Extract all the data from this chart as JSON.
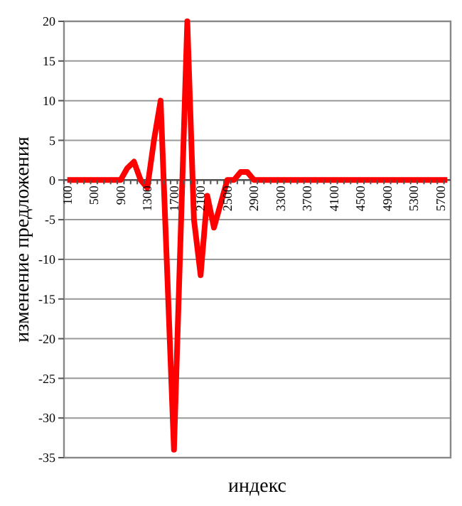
{
  "chart_data": {
    "type": "line",
    "xlabel": "индекс",
    "ylabel": "изменение предложения",
    "categories": [
      "100",
      null,
      null,
      null,
      "500",
      null,
      null,
      null,
      "900",
      null,
      null,
      null,
      "1300",
      null,
      null,
      null,
      "1700",
      null,
      null,
      null,
      "2100",
      null,
      null,
      null,
      "2500",
      null,
      null,
      null,
      "2900",
      null,
      null,
      null,
      "3300",
      null,
      null,
      null,
      "3700",
      null,
      null,
      null,
      "4100",
      null,
      null,
      null,
      "4500",
      null,
      null,
      null,
      "4900",
      null,
      null,
      null,
      "5300",
      null,
      null,
      null,
      "5700",
      null
    ],
    "series": [
      {
        "color": "#ff0000",
        "values": [
          0,
          0,
          0,
          0,
          0,
          0,
          0,
          0,
          0,
          1.5,
          2.3,
          0,
          -1,
          5,
          10,
          -12,
          -34,
          -7,
          20,
          -5,
          -12,
          -2,
          -6,
          -3,
          0,
          0,
          1,
          1,
          0,
          0,
          0,
          0,
          0,
          0,
          0,
          0,
          0,
          0,
          0,
          0,
          0,
          0,
          0,
          0,
          0,
          0,
          0,
          0,
          0,
          0,
          0,
          0,
          0,
          0,
          0,
          0,
          0,
          0
        ]
      }
    ],
    "ylim": [
      -35,
      20
    ],
    "yticks": [
      -35,
      -30,
      -25,
      -20,
      -15,
      -10,
      -5,
      0,
      5,
      10,
      15,
      20
    ],
    "grid": "y",
    "marker": "none",
    "line_style": "solid"
  }
}
